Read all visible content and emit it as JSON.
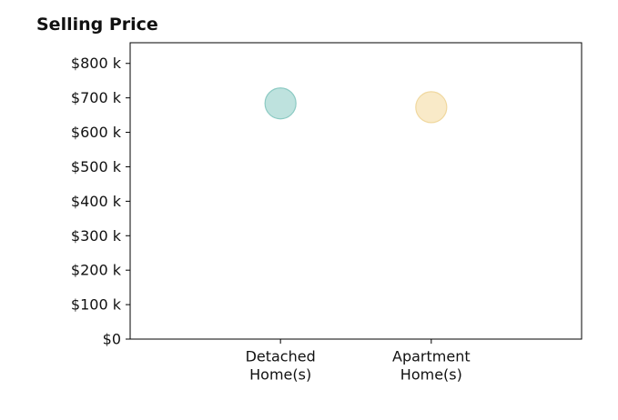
{
  "chart_data": {
    "type": "scatter",
    "title": "Selling Price",
    "xlabel": "",
    "ylabel": "",
    "categories": [
      [
        "Detached",
        "Home(s)"
      ],
      [
        "Apartment",
        "Home(s)"
      ]
    ],
    "values": [
      684000,
      673000
    ],
    "point_colors": [
      "#a8d8d3",
      "#f7e3b5"
    ],
    "point_edge_colors": [
      "#8ccac3",
      "#f0d89f"
    ],
    "yticks": [
      0,
      100000,
      200000,
      300000,
      400000,
      500000,
      600000,
      700000,
      800000
    ],
    "ytick_labels": [
      "$0",
      "$100 k",
      "$200 k",
      "$300 k",
      "$400 k",
      "$500 k",
      "$600 k",
      "$700 k",
      "$800 k"
    ],
    "ylim": [
      0,
      860000
    ],
    "grid": false,
    "legend": "none"
  }
}
